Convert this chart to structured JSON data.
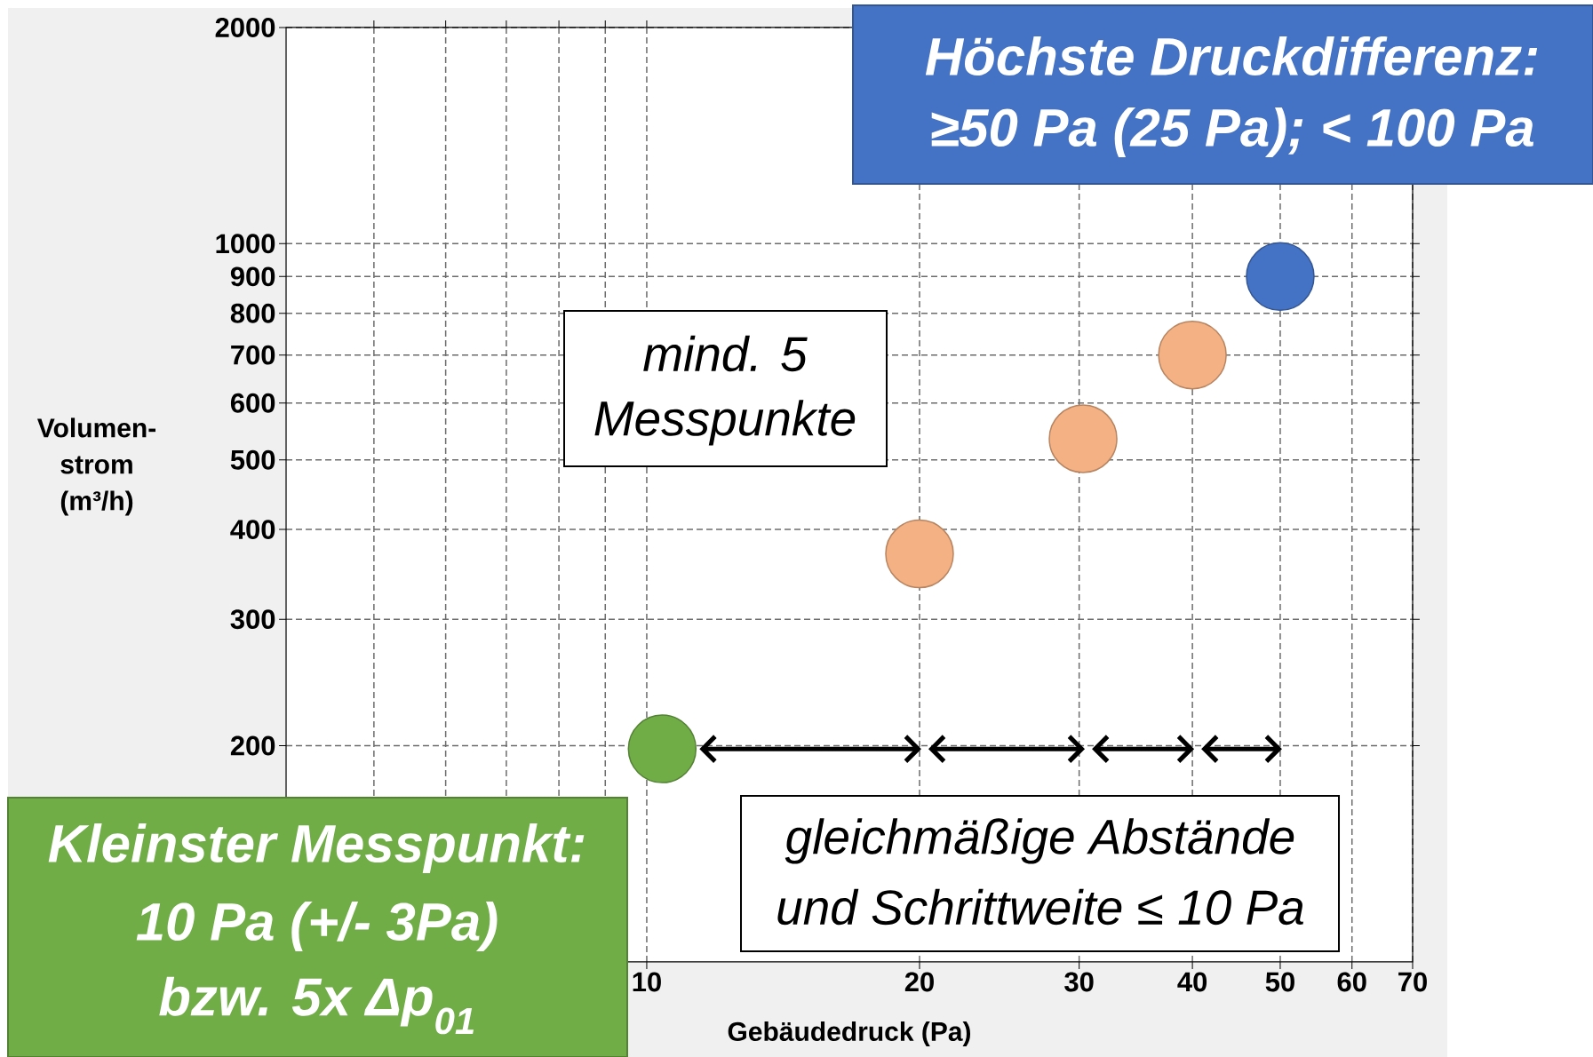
{
  "chart_data": {
    "type": "scatter",
    "xlabel": "Gebäudedruck (Pa)",
    "ylabel": "Volumen-strom (m³/h)",
    "log": "xy",
    "grid": true,
    "x": [
      10.4,
      20,
      30.3,
      40,
      50
    ],
    "values": [
      198,
      370,
      535,
      700,
      900
    ],
    "colors": [
      "#70ad47",
      "#f4b183",
      "#f4b183",
      "#f4b183",
      "#4472c4"
    ],
    "xlim": [
      4,
      70
    ],
    "ylim": [
      100,
      2000
    ],
    "xticks": [
      {
        "value": 5,
        "label": null
      },
      {
        "value": 6,
        "label": null
      },
      {
        "value": 7,
        "label": null
      },
      {
        "value": 8,
        "label": null
      },
      {
        "value": 9,
        "label": null
      },
      10,
      20,
      30,
      40,
      50,
      60,
      70
    ],
    "yticks": [
      200,
      300,
      400,
      500,
      600,
      700,
      800,
      900,
      1000,
      2000
    ],
    "annotations": [
      "Höchste Druckdifferenz:",
      "≥50 Pa (25 Pa); < 100 Pa",
      "mind. 5",
      "Messpunkte",
      "gleichmäßige Abstände",
      "und Schrittweite ≤ 10 Pa",
      "Kleinster Messpunkt:",
      "10 Pa (+/- 3Pa)",
      "bzw. 5x Δp$_{01}$"
    ]
  }
}
